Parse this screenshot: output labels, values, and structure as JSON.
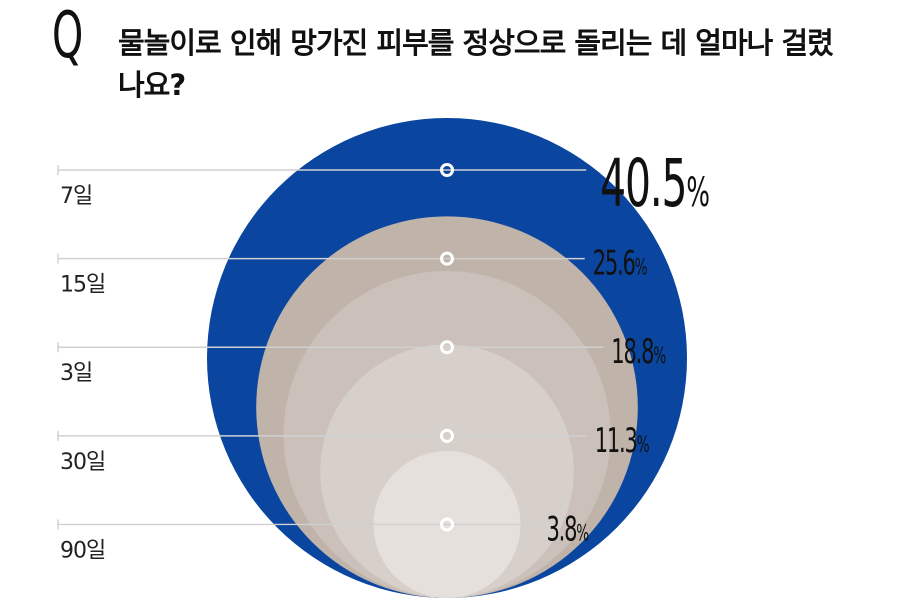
{
  "question": {
    "marker": "Q",
    "text": "물놀이로 인해 망가진 피부를 정상으로 돌리는 데 얼마나 걸렸나요?"
  },
  "chart_data": {
    "type": "bubble",
    "nested": true,
    "categories": [
      "7일",
      "15일",
      "3일",
      "30일",
      "90일"
    ],
    "values": [
      40.5,
      25.6,
      18.8,
      11.3,
      3.8
    ],
    "value_labels": [
      "40.5",
      "25.6",
      "18.8",
      "11.3",
      "3.8"
    ],
    "unit": "%",
    "colors": [
      "#0a46a0",
      "#bfb3aa",
      "#cbc1ba",
      "#d7cfc9",
      "#e6e0dc"
    ]
  }
}
